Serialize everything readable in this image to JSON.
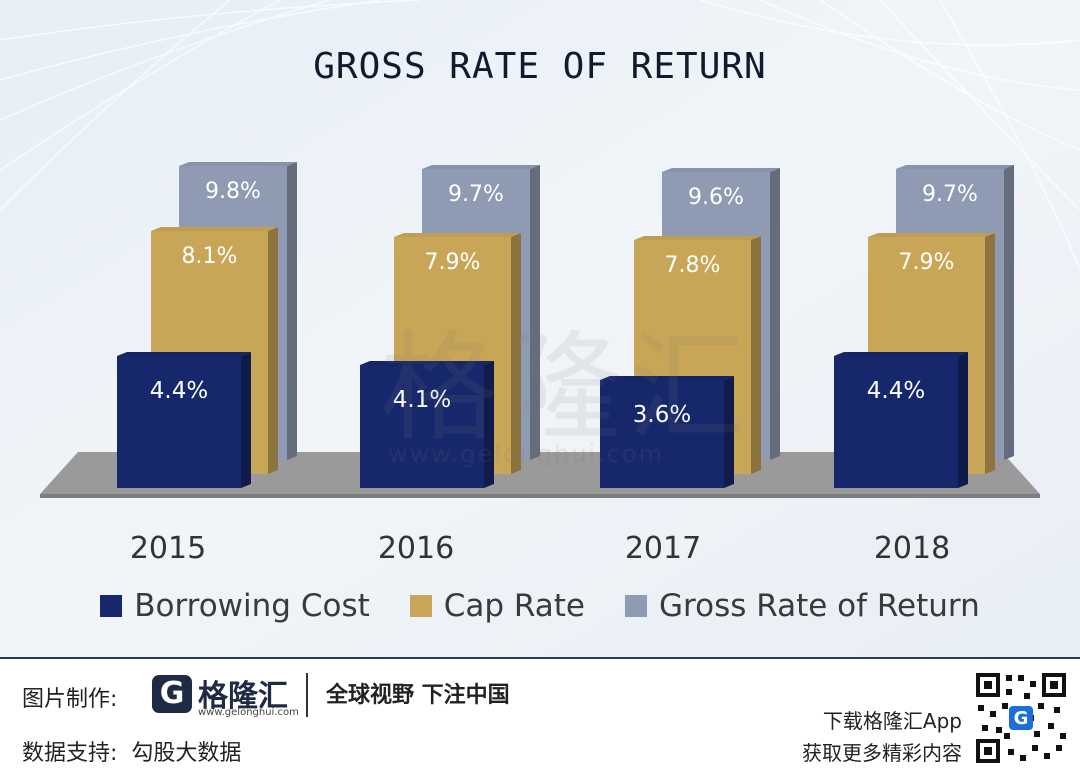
{
  "chart_data": {
    "type": "bar",
    "title": "GROSS RATE OF RETURN",
    "categories": [
      "2015",
      "2016",
      "2017",
      "2018"
    ],
    "series": [
      {
        "name": "Borrowing Cost",
        "values": [
          4.4,
          4.1,
          3.6,
          4.4
        ],
        "labels": [
          "4.4%",
          "4.1%",
          "3.6%",
          "4.4%"
        ],
        "color": "#17276b"
      },
      {
        "name": "Cap Rate",
        "values": [
          8.1,
          7.9,
          7.8,
          7.9
        ],
        "labels": [
          "8.1%",
          "7.9%",
          "7.8%",
          "7.9%"
        ],
        "color": "#c9a557"
      },
      {
        "name": "Gross Rate of Return",
        "values": [
          9.8,
          9.7,
          9.6,
          9.7
        ],
        "labels": [
          "9.8%",
          "9.7%",
          "9.6%",
          "9.7%"
        ],
        "color": "#8f9ab3"
      }
    ],
    "legend_position": "bottom",
    "grid": false
  },
  "watermark": {
    "logo": "格隆汇",
    "url": "www.gelonghui.com"
  },
  "footer": {
    "made_by_label": "图片制作:",
    "brand_icon": "G",
    "brand_name": "格隆汇",
    "brand_url": "www.gelonghui.com",
    "slogan": "全球视野 下注中国",
    "data_support": "数据支持:  勾股大数据",
    "download": "下载格隆汇App",
    "download_sub": "获取更多精彩内容",
    "qr_icon": "qr-code-icon"
  }
}
